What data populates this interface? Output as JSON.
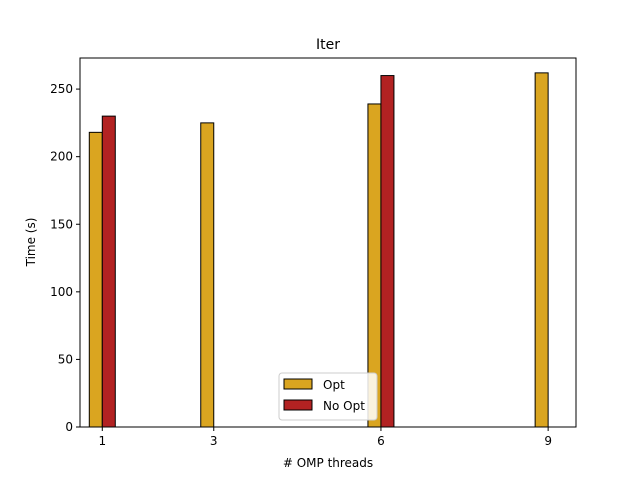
{
  "chart_data": {
    "type": "bar",
    "title": "Iter",
    "xlabel": "# OMP threads",
    "ylabel": "Time (s)",
    "x": [
      1,
      3,
      6,
      9
    ],
    "xticks": [
      1,
      3,
      6,
      9
    ],
    "xlim": [
      0.6,
      9.5
    ],
    "ylim": [
      0,
      273
    ],
    "yticks": [
      0,
      50,
      100,
      150,
      200,
      250
    ],
    "grid": false,
    "legend_position": "lower center",
    "series": [
      {
        "name": "Opt",
        "color": "#DAA520",
        "values": [
          218,
          225,
          239,
          262
        ]
      },
      {
        "name": "No Opt",
        "color": "#B22222",
        "values": [
          230,
          null,
          260,
          null
        ]
      }
    ]
  }
}
